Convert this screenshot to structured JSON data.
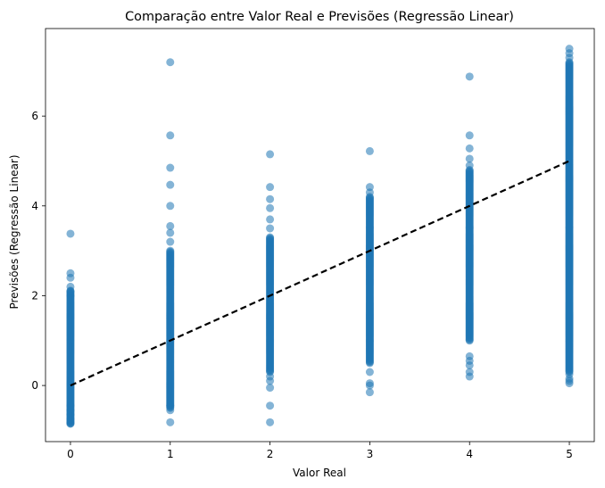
{
  "chart_data": {
    "type": "scatter",
    "title": "Comparação entre Valor Real e Previsões (Regressão Linear)",
    "xlabel": "Valor Real",
    "ylabel": "Previsões (Regressão Linear)",
    "xlim": [
      -0.25,
      5.25
    ],
    "ylim": [
      -1.25,
      7.95
    ],
    "xticks": [
      "0",
      "1",
      "2",
      "3",
      "4",
      "5"
    ],
    "yticks": [
      "0",
      "2",
      "4",
      "6"
    ],
    "grid": false,
    "legend": "none",
    "marker_color": "#1f77b4",
    "marker_opacity": 0.55,
    "reference_line": {
      "x": [
        0,
        5
      ],
      "y": [
        0,
        5
      ],
      "style": "dashed",
      "color": "#000000"
    },
    "series": [
      {
        "x": 0,
        "dense_range": [
          -0.85,
          2.1
        ],
        "outliers": [
          -0.85,
          -0.82,
          -0.75,
          -0.65,
          -0.55,
          -0.45,
          2.0,
          2.1,
          2.2,
          2.4,
          2.5,
          3.38
        ]
      },
      {
        "x": 1,
        "dense_range": [
          -0.5,
          3.0
        ],
        "outliers": [
          -0.82,
          -0.55,
          -0.45,
          3.2,
          3.4,
          3.55,
          4.0,
          4.47,
          4.85,
          5.57,
          7.2
        ]
      },
      {
        "x": 2,
        "dense_range": [
          0.3,
          3.3
        ],
        "outliers": [
          -0.82,
          -0.45,
          -0.05,
          0.1,
          0.2,
          3.5,
          3.7,
          3.95,
          4.15,
          4.42,
          5.15
        ]
      },
      {
        "x": 3,
        "dense_range": [
          0.5,
          4.2
        ],
        "outliers": [
          -0.15,
          0.0,
          0.05,
          0.3,
          4.3,
          4.42,
          5.22
        ]
      },
      {
        "x": 4,
        "dense_range": [
          1.0,
          4.8
        ],
        "outliers": [
          0.2,
          0.3,
          0.45,
          0.55,
          0.65,
          4.9,
          5.05,
          5.28,
          5.57,
          6.88
        ]
      },
      {
        "x": 5,
        "dense_range": [
          0.3,
          7.2
        ],
        "outliers": [
          0.05,
          0.1,
          0.15,
          0.25,
          7.3,
          7.4,
          7.5
        ]
      }
    ]
  }
}
